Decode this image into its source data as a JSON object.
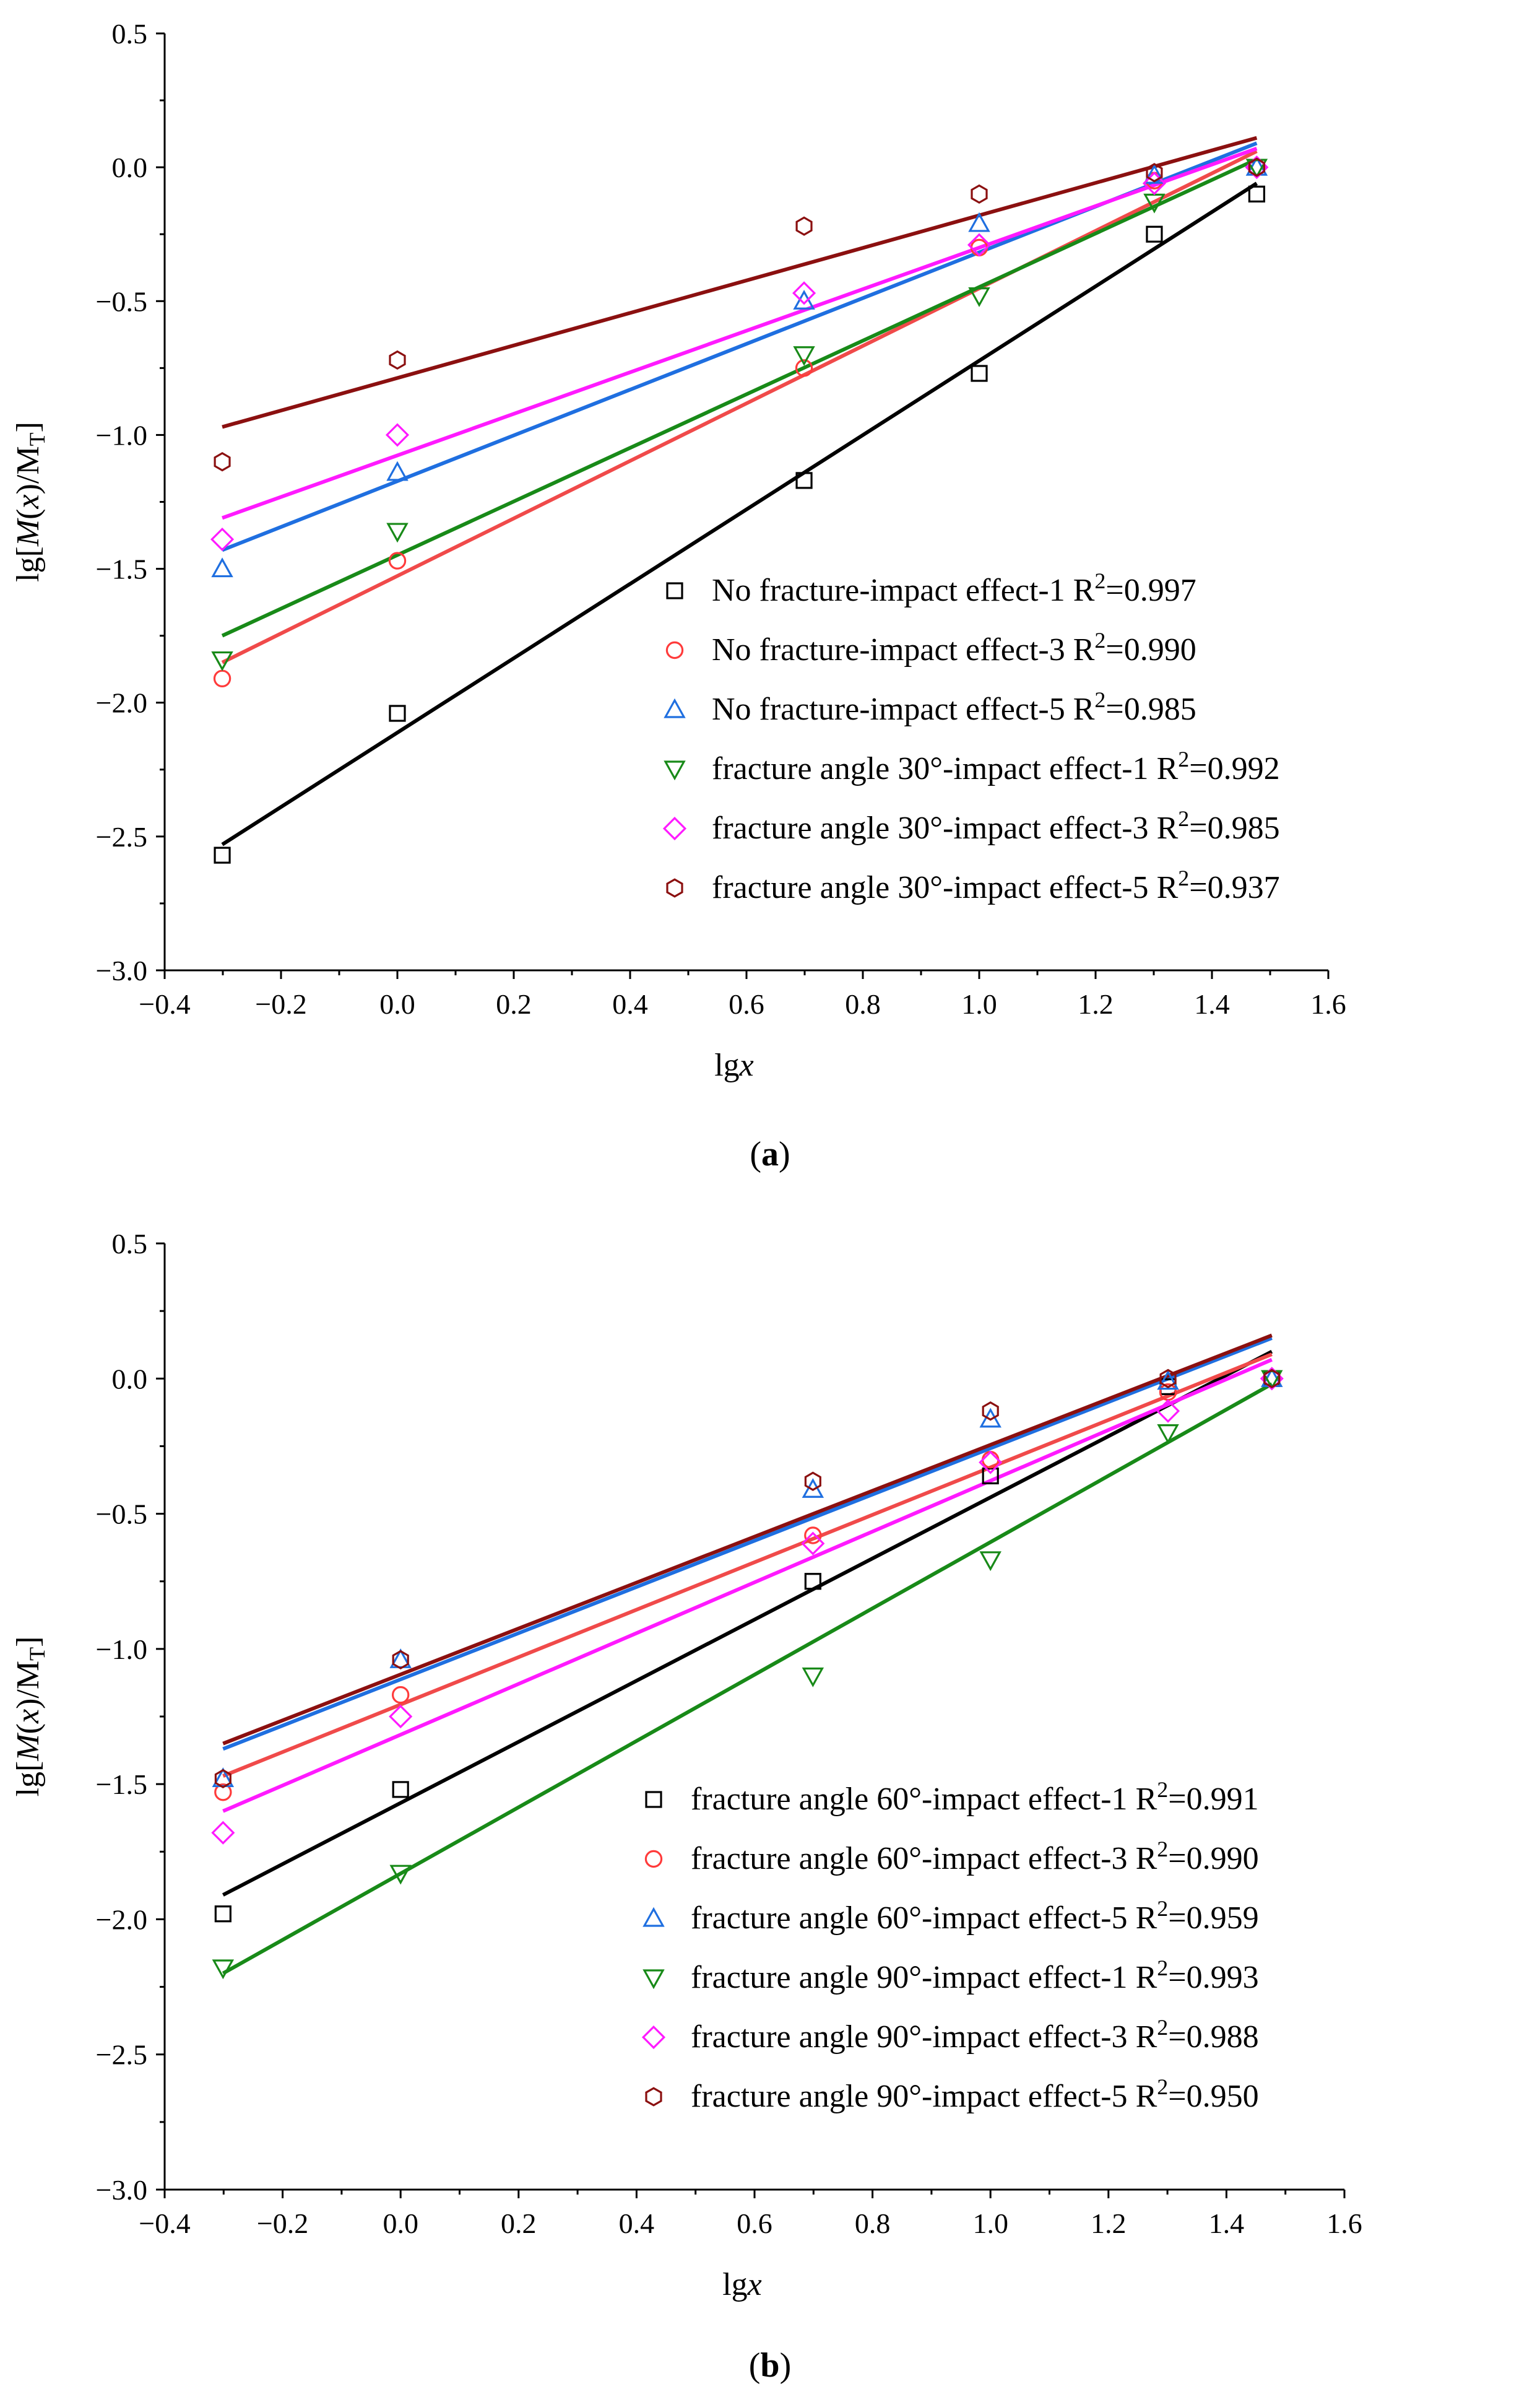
{
  "figure": {
    "panels": [
      "(a)",
      "(b)"
    ]
  },
  "chart_data": [
    {
      "type": "scatter",
      "caption_letter": "a",
      "xlabel": "lgx",
      "ylabel": "lg[M(x)/M_T]",
      "xlim": [
        -0.4,
        1.6
      ],
      "ylim": [
        -3.0,
        0.5
      ],
      "x_ticks": [
        -0.4,
        -0.2,
        0.0,
        0.2,
        0.4,
        0.6,
        0.8,
        1.0,
        1.2,
        1.4,
        1.6
      ],
      "x_tick_labels": [
        "−0.4",
        "−0.2",
        "0.0",
        "0.2",
        "0.4",
        "0.6",
        "0.8",
        "1.0",
        "1.2",
        "1.4",
        "1.6"
      ],
      "y_ticks": [
        0.5,
        0.0,
        -0.5,
        -1.0,
        -1.5,
        -2.0,
        -2.5,
        -3.0
      ],
      "y_tick_labels": [
        "0.5",
        "0.0",
        "−0.5",
        "−1.0",
        "−1.5",
        "−2.0",
        "−2.5",
        "−3.0"
      ],
      "x": [
        -0.301,
        0.0,
        0.699,
        1.0,
        1.301,
        1.477
      ],
      "legend_position": "bottom-right",
      "series": [
        {
          "name": "No fracture-impact effect-1",
          "r2": "0.997",
          "marker": "square",
          "color": "#000000",
          "line_color": "#000000",
          "values": [
            -2.57,
            -2.04,
            -1.17,
            -0.77,
            -0.25,
            -0.1
          ],
          "fit": [
            -2.53,
            -0.06
          ]
        },
        {
          "name": "No fracture-impact effect-3",
          "r2": "0.990",
          "marker": "circle",
          "color": "#ff3b3b",
          "line_color": "#f04a4a",
          "values": [
            -1.91,
            -1.47,
            -0.75,
            -0.3,
            -0.05,
            0.0
          ],
          "fit": [
            -1.85,
            0.06
          ]
        },
        {
          "name": "No fracture-impact effect-5",
          "r2": "0.985",
          "marker": "triangle-up",
          "color": "#1f6fe0",
          "line_color": "#1f6fe0",
          "values": [
            -1.5,
            -1.14,
            -0.5,
            -0.21,
            -0.03,
            0.0
          ],
          "fit": [
            -1.43,
            0.09
          ]
        },
        {
          "name": "fracture angle 30°-impact effect-1",
          "r2": "0.992",
          "marker": "triangle-down",
          "color": "#188a18",
          "line_color": "#188a18",
          "values": [
            -1.84,
            -1.36,
            -0.7,
            -0.48,
            -0.13,
            0.0
          ],
          "fit": [
            -1.75,
            0.03
          ]
        },
        {
          "name": "fracture angle 30°-impact effect-3",
          "r2": "0.985",
          "marker": "diamond",
          "color": "#ff1aff",
          "line_color": "#ff1aff",
          "values": [
            -1.39,
            -1.0,
            -0.47,
            -0.29,
            -0.06,
            0.0
          ],
          "fit": [
            -1.31,
            0.07
          ]
        },
        {
          "name": "fracture angle 30°-impact effect-5",
          "r2": "0.937",
          "marker": "hexagon",
          "color": "#8b1010",
          "line_color": "#8b1010",
          "values": [
            -1.1,
            -0.72,
            -0.22,
            -0.1,
            -0.02,
            0.0
          ],
          "fit": [
            -0.97,
            0.11
          ]
        }
      ]
    },
    {
      "type": "scatter",
      "caption_letter": "b",
      "xlabel": "lgx",
      "ylabel": "lg[M(x)/M_T]",
      "xlim": [
        -0.4,
        1.6
      ],
      "ylim": [
        -3.0,
        0.5
      ],
      "x_ticks": [
        -0.4,
        -0.2,
        0.0,
        0.2,
        0.4,
        0.6,
        0.8,
        1.0,
        1.2,
        1.4,
        1.6
      ],
      "x_tick_labels": [
        "−0.4",
        "−0.2",
        "0.0",
        "0.2",
        "0.4",
        "0.6",
        "0.8",
        "1.0",
        "1.2",
        "1.4",
        "1.6"
      ],
      "y_ticks": [
        0.5,
        0.0,
        -0.5,
        -1.0,
        -1.5,
        -2.0,
        -2.5,
        -3.0
      ],
      "y_tick_labels": [
        "0.5",
        "0.0",
        "−0.5",
        "−1.0",
        "−1.5",
        "−2.0",
        "−2.5",
        "−3.0"
      ],
      "x": [
        -0.301,
        0.0,
        0.699,
        1.0,
        1.301,
        1.477
      ],
      "legend_position": "bottom-right",
      "series": [
        {
          "name": "fracture angle 60°-impact effect-1",
          "r2": "0.991",
          "marker": "square",
          "color": "#000000",
          "line_color": "#000000",
          "values": [
            -1.98,
            -1.52,
            -0.75,
            -0.36,
            -0.03,
            0.0
          ],
          "fit": [
            -1.91,
            0.1
          ]
        },
        {
          "name": "fracture angle 60°-impact effect-3",
          "r2": "0.990",
          "marker": "circle",
          "color": "#ff3b3b",
          "line_color": "#f04a4a",
          "values": [
            -1.53,
            -1.17,
            -0.58,
            -0.3,
            -0.05,
            0.0
          ],
          "fit": [
            -1.47,
            0.09
          ]
        },
        {
          "name": "fracture angle 60°-impact effect-5",
          "r2": "0.959",
          "marker": "triangle-up",
          "color": "#1f6fe0",
          "line_color": "#1f6fe0",
          "values": [
            -1.48,
            -1.04,
            -0.41,
            -0.15,
            -0.01,
            0.0
          ],
          "fit": [
            -1.37,
            0.15
          ]
        },
        {
          "name": "fracture angle 90°-impact effect-1",
          "r2": "0.993",
          "marker": "triangle-down",
          "color": "#188a18",
          "line_color": "#188a18",
          "values": [
            -2.18,
            -1.83,
            -1.1,
            -0.67,
            -0.2,
            0.0
          ],
          "fit": [
            -2.2,
            -0.02
          ]
        },
        {
          "name": "fracture angle 90°-impact effect-3",
          "r2": "0.988",
          "marker": "diamond",
          "color": "#ff1aff",
          "line_color": "#ff1aff",
          "values": [
            -1.68,
            -1.25,
            -0.61,
            -0.31,
            -0.12,
            0.0
          ],
          "fit": [
            -1.6,
            0.07
          ]
        },
        {
          "name": "fracture angle 90°-impact effect-5",
          "r2": "0.950",
          "marker": "hexagon",
          "color": "#8b1010",
          "line_color": "#8b1010",
          "values": [
            -1.48,
            -1.04,
            -0.38,
            -0.12,
            0.0,
            0.0
          ],
          "fit": [
            -1.35,
            0.16
          ]
        }
      ]
    }
  ]
}
